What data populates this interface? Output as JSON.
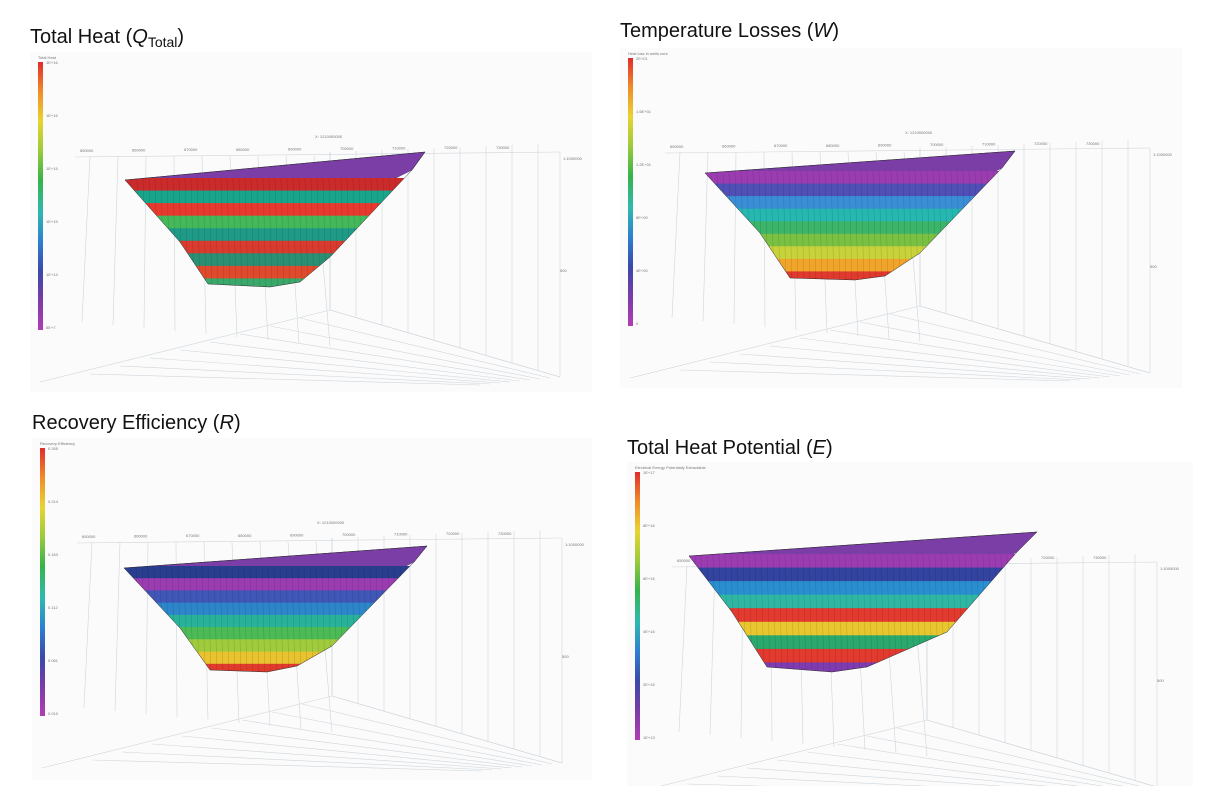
{
  "panels": [
    {
      "id": "qtotal",
      "title_prefix": "Total Heat (",
      "title_italic": "Q",
      "title_sub": "Total",
      "title_suffix": ")",
      "legend_title": "Total Heat",
      "legend_ticks": [
        "1E+16",
        "1E+16",
        "1E+15",
        "1E+15",
        "1E+14",
        "5E+7"
      ],
      "axis_ticks": [
        "650000",
        "660000",
        "670000",
        "680000",
        "690000",
        "700000",
        "710000",
        "720000",
        "730000"
      ],
      "axis_name": "X: 1210000000",
      "corner_label": "1:1000000",
      "depth_label": "500",
      "palette": [
        "#cc2b2b",
        "#19a58c",
        "#e8392f",
        "#44b85a",
        "#1f9a86",
        "#d93b2e",
        "#2b8f74",
        "#e04a2c",
        "#3aa86a"
      ]
    },
    {
      "id": "w",
      "title_prefix": "Temperature Losses (",
      "title_italic": "W",
      "title_sub": "",
      "title_suffix": ")",
      "legend_title": "Heat loss in wells core",
      "legend_ticks": [
        "2E+01",
        "1.6E+01",
        "1.2E+01",
        "8E+00",
        "4E+00",
        "0"
      ],
      "axis_ticks": [
        "650000",
        "660000",
        "670000",
        "680000",
        "690000",
        "700000",
        "710000",
        "720000",
        "730000"
      ],
      "axis_name": "X: 1210000000",
      "corner_label": "1:1000000",
      "depth_label": "500",
      "palette": [
        "#9b3db1",
        "#4f4fb6",
        "#3a8ed6",
        "#27b7b1",
        "#3cb56b",
        "#7ac143",
        "#c8d23a",
        "#f0a52a",
        "#e0392e"
      ]
    },
    {
      "id": "r",
      "title_prefix": "Recovery Efficiency (",
      "title_italic": "R",
      "title_sub": "",
      "title_suffix": ")",
      "legend_title": "Recovery Efficiency",
      "legend_ticks": [
        "0.265",
        "0.214",
        "0.163",
        "0.112",
        "0.061",
        "0.010"
      ],
      "axis_ticks": [
        "650000",
        "660000",
        "670000",
        "680000",
        "690000",
        "700000",
        "710000",
        "720000",
        "730000"
      ],
      "axis_name": "X: 1210000000",
      "corner_label": "1:1000000",
      "depth_label": "500",
      "palette": [
        "#2a3e8f",
        "#9b3db1",
        "#4057b8",
        "#2d86c9",
        "#29b29a",
        "#4cbb56",
        "#9fcb3d",
        "#e8c22f",
        "#e03a2c"
      ]
    },
    {
      "id": "e",
      "title_prefix": "Total Heat Potential (",
      "title_italic": "E",
      "title_sub": "",
      "title_suffix": ")",
      "legend_title": "Electrical Energy Potentially Extractable",
      "legend_ticks": [
        "1E+17",
        "8E+16",
        "6E+16",
        "4E+16",
        "2E+16",
        "1E+13"
      ],
      "axis_ticks": [
        "650000",
        "660000",
        "670000",
        "680000",
        "690000",
        "700000",
        "710000",
        "720000",
        "730000"
      ],
      "axis_name": "X: 1210000000",
      "corner_label": "1:1000000",
      "depth_label": "500",
      "palette": [
        "#9b3db1",
        "#3343a0",
        "#2a8fd0",
        "#30b7a3",
        "#e23a2e",
        "#e8c62f",
        "#2aa86d",
        "#e23a2e",
        "#7f3bb0"
      ]
    }
  ]
}
